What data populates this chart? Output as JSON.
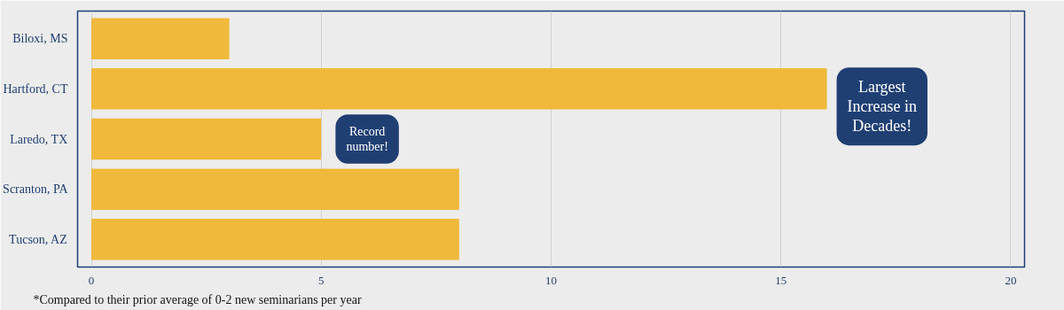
{
  "chart_data": {
    "type": "bar",
    "orientation": "horizontal",
    "categories": [
      "Biloxi, MS",
      "Hartford, CT",
      "Laredo, TX",
      "Scranton, PA",
      "Tucson, AZ"
    ],
    "values": [
      3,
      16,
      5,
      8,
      8
    ],
    "color": "#f0b93b",
    "xlim": [
      0,
      20
    ],
    "xticks": [
      0,
      5,
      10,
      15,
      20
    ],
    "grid": "x",
    "annotations": [
      "Largest\nIncrease in\nDecades!",
      "Record\nnumber!",
      "*Compared to their prior average of 0-2 new seminarians per year"
    ]
  }
}
